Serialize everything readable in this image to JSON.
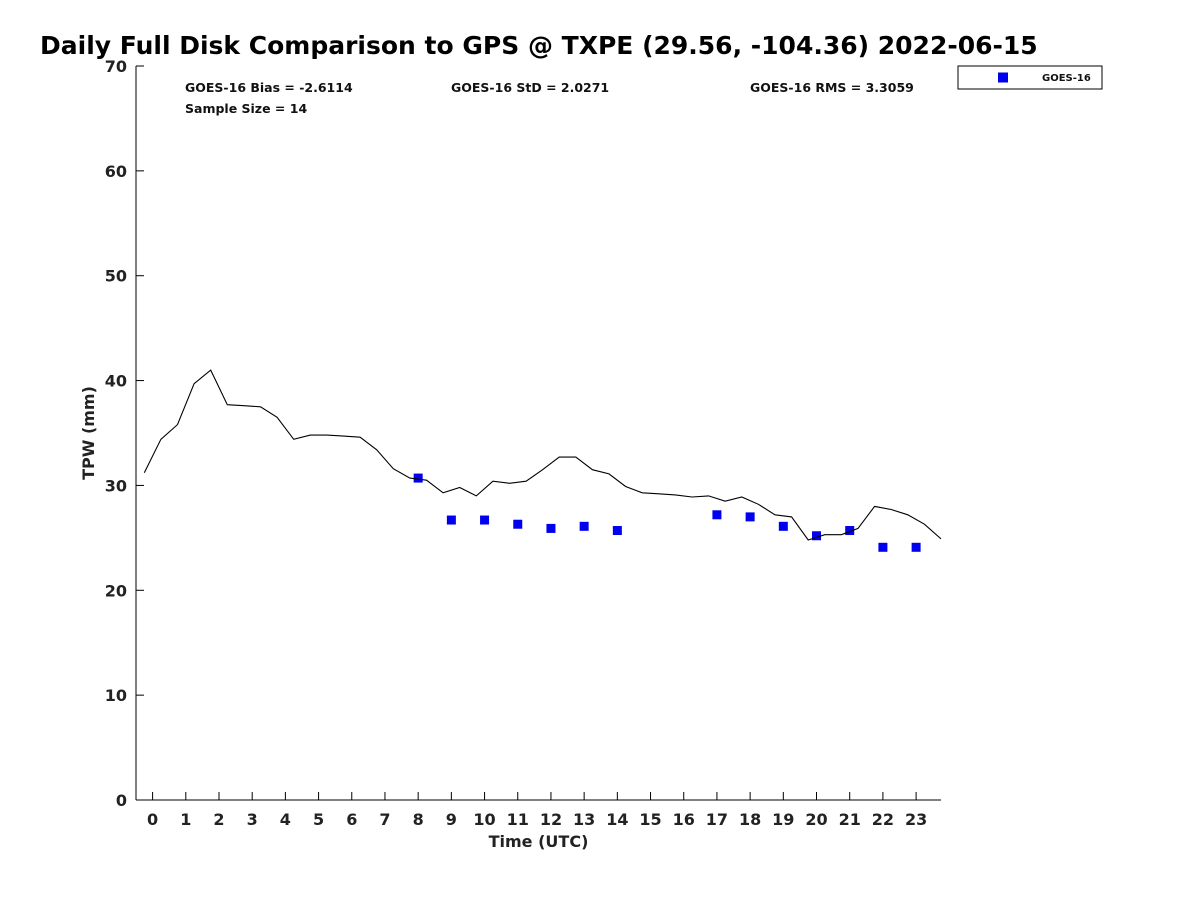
{
  "chart_data": {
    "type": "scatter",
    "title": "Daily Full Disk Comparison to GPS @ TXPE (29.56, -104.36) 2022-06-15",
    "xlabel": "Time (UTC)",
    "ylabel": "TPW (mm)",
    "xlim": [
      -0.5,
      23.75
    ],
    "ylim": [
      0,
      70
    ],
    "x_ticks": [
      0,
      1,
      2,
      3,
      4,
      5,
      6,
      7,
      8,
      9,
      10,
      11,
      12,
      13,
      14,
      15,
      16,
      17,
      18,
      19,
      20,
      21,
      22,
      23
    ],
    "y_ticks": [
      0,
      10,
      20,
      30,
      40,
      50,
      60,
      70
    ],
    "grid": false,
    "legend_position": "outside-top-right",
    "stats": [
      {
        "text": "GOES-16 Bias = -2.6114"
      },
      {
        "text": "GOES-16 StD = 2.0271"
      },
      {
        "text": "GOES-16 RMS = 3.3059"
      },
      {
        "text": "Sample Size = 14"
      }
    ],
    "series": [
      {
        "name": "GOES-16",
        "kind": "markers",
        "marker": "square",
        "color": "#0000ee",
        "points": [
          [
            8,
            30.7
          ],
          [
            9,
            26.7
          ],
          [
            10,
            26.7
          ],
          [
            11,
            26.3
          ],
          [
            12,
            25.9
          ],
          [
            13,
            26.1
          ],
          [
            14,
            25.7
          ],
          [
            17,
            27.2
          ],
          [
            18,
            27.0
          ],
          [
            19,
            26.1
          ],
          [
            20,
            25.2
          ],
          [
            21,
            25.7
          ],
          [
            22,
            24.1
          ],
          [
            23,
            24.1
          ]
        ]
      },
      {
        "kind": "line",
        "color": "#000000",
        "points": [
          [
            -0.25,
            31.2
          ],
          [
            0.25,
            34.4
          ],
          [
            0.75,
            35.8
          ],
          [
            1.25,
            39.7
          ],
          [
            1.75,
            41.0
          ],
          [
            2.25,
            37.7
          ],
          [
            2.75,
            37.6
          ],
          [
            3.25,
            37.5
          ],
          [
            3.75,
            36.5
          ],
          [
            4.25,
            34.4
          ],
          [
            4.75,
            34.8
          ],
          [
            5.25,
            34.8
          ],
          [
            5.75,
            34.7
          ],
          [
            6.25,
            34.6
          ],
          [
            6.75,
            33.4
          ],
          [
            7.25,
            31.6
          ],
          [
            7.75,
            30.7
          ],
          [
            8.25,
            30.5
          ],
          [
            8.75,
            29.3
          ],
          [
            9.25,
            29.8
          ],
          [
            9.75,
            29.0
          ],
          [
            10.25,
            30.4
          ],
          [
            10.75,
            30.2
          ],
          [
            11.25,
            30.4
          ],
          [
            11.75,
            31.5
          ],
          [
            12.25,
            32.7
          ],
          [
            12.75,
            32.7
          ],
          [
            13.25,
            31.5
          ],
          [
            13.75,
            31.1
          ],
          [
            14.25,
            29.9
          ],
          [
            14.75,
            29.3
          ],
          [
            15.25,
            29.2
          ],
          [
            15.75,
            29.1
          ],
          [
            16.25,
            28.9
          ],
          [
            16.75,
            29.0
          ],
          [
            17.25,
            28.5
          ],
          [
            17.75,
            28.9
          ],
          [
            18.25,
            28.2
          ],
          [
            18.75,
            27.2
          ],
          [
            19.25,
            27.0
          ],
          [
            19.75,
            24.8
          ],
          [
            20.25,
            25.3
          ],
          [
            20.75,
            25.3
          ],
          [
            21.25,
            25.9
          ],
          [
            21.75,
            28.0
          ],
          [
            22.25,
            27.7
          ],
          [
            22.75,
            27.2
          ],
          [
            23.25,
            26.3
          ],
          [
            23.75,
            24.9
          ]
        ]
      }
    ]
  }
}
